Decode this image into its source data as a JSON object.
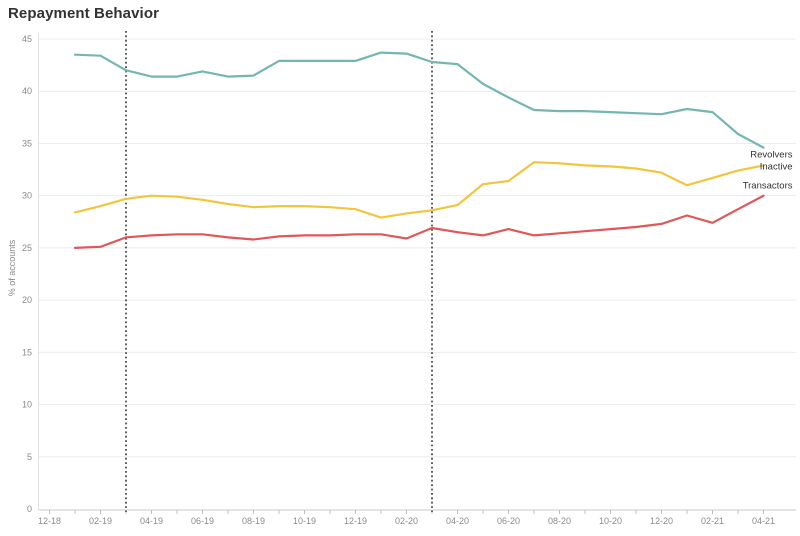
{
  "title": "Repayment Behavior",
  "chart_data": {
    "type": "line",
    "title": "Repayment Behavior",
    "xlabel": "",
    "ylabel": "% of accounts",
    "ylim": [
      0,
      45
    ],
    "ytick_step": 5,
    "ytick_labels": [
      "0",
      "5",
      "10",
      "15",
      "20",
      "25",
      "30",
      "35",
      "40",
      "45"
    ],
    "grid": true,
    "legend_position": "end-of-line-labels",
    "x_timeline": [
      "12-18",
      "01-19",
      "02-19",
      "03-19",
      "04-19",
      "05-19",
      "06-19",
      "07-19",
      "08-19",
      "09-19",
      "10-19",
      "11-19",
      "12-19",
      "01-20",
      "02-20",
      "03-20",
      "04-20",
      "05-20",
      "06-20",
      "07-20",
      "08-20",
      "09-20",
      "10-20",
      "11-20",
      "12-20",
      "01-21",
      "02-21",
      "03-21",
      "04-21"
    ],
    "xtick_labels": [
      "12-18",
      "02-19",
      "04-19",
      "06-19",
      "08-19",
      "10-19",
      "12-19",
      "02-20",
      "04-20",
      "06-20",
      "08-20",
      "10-20",
      "12-20",
      "02-21",
      "04-21"
    ],
    "series_start_label": "01-19",
    "reference_lines": [
      {
        "x_label": "03-19",
        "style": "dotted",
        "color": "#1a1a1a"
      },
      {
        "x_label": "03-20",
        "style": "dotted",
        "color": "#1a1a1a"
      }
    ],
    "series": [
      {
        "name": "Revolvers",
        "color": "#74b6b0",
        "values": [
          43.5,
          43.4,
          42.0,
          41.4,
          41.4,
          41.9,
          41.4,
          41.5,
          42.9,
          42.9,
          42.9,
          42.9,
          43.7,
          43.6,
          42.8,
          42.6,
          40.7,
          39.4,
          38.2,
          38.1,
          38.1,
          38.0,
          37.9,
          37.8,
          38.3,
          38.0,
          35.9,
          34.6
        ]
      },
      {
        "name": "Inactive",
        "color": "#f2c53d",
        "values": [
          28.4,
          29.0,
          29.7,
          30.0,
          29.9,
          29.6,
          29.2,
          28.9,
          29.0,
          29.0,
          28.9,
          28.7,
          27.9,
          28.3,
          28.6,
          29.1,
          31.1,
          31.4,
          33.2,
          33.1,
          32.9,
          32.8,
          32.6,
          32.2,
          31.0,
          31.7,
          32.4,
          32.9
        ]
      },
      {
        "name": "Transactors",
        "color": "#e15759",
        "values": [
          25.0,
          25.1,
          26.0,
          26.2,
          26.3,
          26.3,
          26.0,
          25.8,
          26.1,
          26.2,
          26.2,
          26.3,
          26.3,
          25.9,
          26.9,
          26.5,
          26.2,
          26.8,
          26.2,
          26.4,
          26.6,
          26.8,
          27.0,
          27.3,
          28.1,
          27.4,
          28.7,
          30.0
        ]
      }
    ],
    "colors": {
      "grid": "#ececec",
      "axis_line": "#c9c9c9",
      "left_axis_line": "#e2e2e2",
      "tick": "#c0c0c0",
      "tick_label": "#8a8a8a",
      "title_text": "#323232",
      "end_label_text": "#333333"
    }
  }
}
